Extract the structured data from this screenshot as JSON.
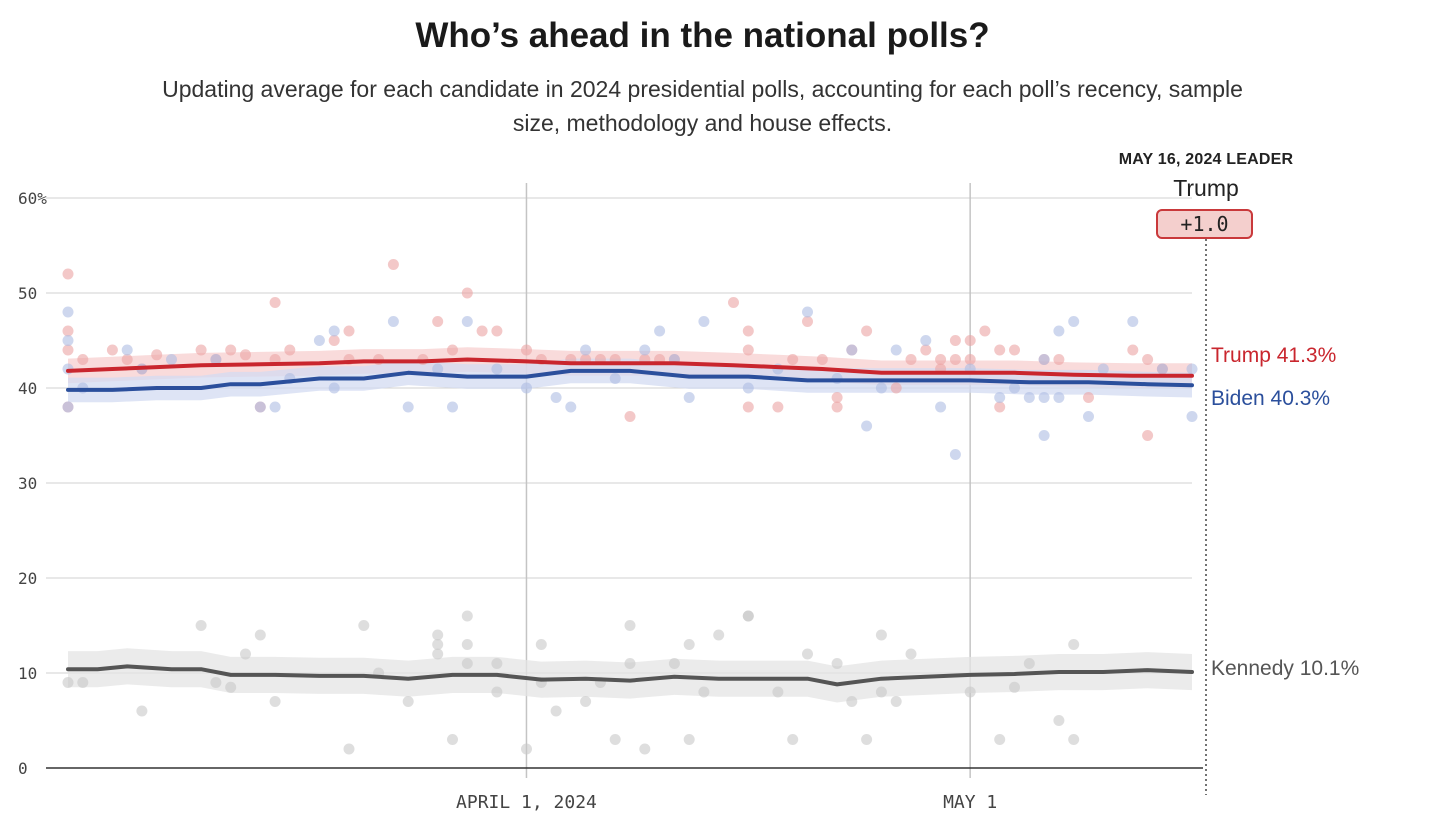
{
  "title": "Who’s ahead in the national polls?",
  "subtitle": "Updating average for each candidate in 2024 presidential polls, accounting for each poll’s recency, sample size, methodology and house effects.",
  "leader": {
    "heading": "MAY 16, 2024 LEADER",
    "name": "Trump",
    "margin": "+1.0"
  },
  "colors": {
    "trump": "#c9262e",
    "biden": "#2b4f9c",
    "kennedy": "#555555",
    "trump_poll": "#eba3a3",
    "biden_poll": "#aebde3",
    "kennedy_poll": "#c8c8c8",
    "grid": "#d0d0d0"
  },
  "chart_data": {
    "type": "line",
    "title": "Who’s ahead in the national polls?",
    "subtitle": "Updating average for each candidate in 2024 presidential polls, accounting for each poll’s recency, sample size, methodology and house effects.",
    "xlabel": "",
    "ylabel": "",
    "x_start": "2024-03-01",
    "x_end": "2024-05-16",
    "ylim": [
      0,
      60
    ],
    "y_ticks": [
      0,
      10,
      20,
      30,
      40,
      50,
      60
    ],
    "y_tick_labels": [
      "0",
      "10",
      "20",
      "30",
      "40",
      "50",
      "60%"
    ],
    "x_ticks": [
      {
        "date": "2024-04-01",
        "label": "APRIL 1, 2024"
      },
      {
        "date": "2024-05-01",
        "label": "MAY 1"
      }
    ],
    "grid": true,
    "series": [
      {
        "name": "Trump",
        "end_label": "Trump 41.3%",
        "color": "#c9262e",
        "average": [
          [
            "2024-03-01",
            41.8
          ],
          [
            "2024-03-04",
            42.0
          ],
          [
            "2024-03-07",
            42.2
          ],
          [
            "2024-03-10",
            42.4
          ],
          [
            "2024-03-14",
            42.5
          ],
          [
            "2024-03-18",
            42.6
          ],
          [
            "2024-03-21",
            42.8
          ],
          [
            "2024-03-25",
            42.8
          ],
          [
            "2024-03-28",
            43.0
          ],
          [
            "2024-04-01",
            42.8
          ],
          [
            "2024-04-04",
            42.6
          ],
          [
            "2024-04-08",
            42.6
          ],
          [
            "2024-04-11",
            42.6
          ],
          [
            "2024-04-15",
            42.4
          ],
          [
            "2024-04-18",
            42.2
          ],
          [
            "2024-04-21",
            42.0
          ],
          [
            "2024-04-25",
            41.6
          ],
          [
            "2024-04-28",
            41.6
          ],
          [
            "2024-05-01",
            41.6
          ],
          [
            "2024-05-04",
            41.6
          ],
          [
            "2024-05-08",
            41.4
          ],
          [
            "2024-05-12",
            41.3
          ],
          [
            "2024-05-16",
            41.3
          ]
        ],
        "polls": [
          [
            "2024-03-01",
            52
          ],
          [
            "2024-03-01",
            46
          ],
          [
            "2024-03-01",
            44
          ],
          [
            "2024-03-01",
            38
          ],
          [
            "2024-03-02",
            43
          ],
          [
            "2024-03-04",
            44
          ],
          [
            "2024-03-05",
            43
          ],
          [
            "2024-03-06",
            42
          ],
          [
            "2024-03-07",
            43.5
          ],
          [
            "2024-03-10",
            44
          ],
          [
            "2024-03-11",
            43
          ],
          [
            "2024-03-12",
            44
          ],
          [
            "2024-03-13",
            43.5
          ],
          [
            "2024-03-14",
            38
          ],
          [
            "2024-03-15",
            49
          ],
          [
            "2024-03-15",
            43
          ],
          [
            "2024-03-16",
            44
          ],
          [
            "2024-03-19",
            45
          ],
          [
            "2024-03-20",
            46
          ],
          [
            "2024-03-20",
            43
          ],
          [
            "2024-03-22",
            43
          ],
          [
            "2024-03-23",
            53
          ],
          [
            "2024-03-25",
            43
          ],
          [
            "2024-03-26",
            47
          ],
          [
            "2024-03-27",
            44
          ],
          [
            "2024-03-28",
            50
          ],
          [
            "2024-03-29",
            46
          ],
          [
            "2024-03-30",
            46
          ],
          [
            "2024-04-01",
            44
          ],
          [
            "2024-04-02",
            43
          ],
          [
            "2024-04-04",
            43
          ],
          [
            "2024-04-05",
            43
          ],
          [
            "2024-04-06",
            43
          ],
          [
            "2024-04-07",
            43
          ],
          [
            "2024-04-08",
            37
          ],
          [
            "2024-04-09",
            43
          ],
          [
            "2024-04-10",
            43
          ],
          [
            "2024-04-11",
            43
          ],
          [
            "2024-04-15",
            49
          ],
          [
            "2024-04-16",
            44
          ],
          [
            "2024-04-16",
            46
          ],
          [
            "2024-04-16",
            38
          ],
          [
            "2024-04-18",
            38
          ],
          [
            "2024-04-19",
            43
          ],
          [
            "2024-04-20",
            47
          ],
          [
            "2024-04-21",
            43
          ],
          [
            "2024-04-22",
            38
          ],
          [
            "2024-04-22",
            39
          ],
          [
            "2024-04-23",
            44
          ],
          [
            "2024-04-24",
            46
          ],
          [
            "2024-04-26",
            40
          ],
          [
            "2024-04-27",
            43
          ],
          [
            "2024-04-28",
            44
          ],
          [
            "2024-04-29",
            43
          ],
          [
            "2024-04-29",
            42
          ],
          [
            "2024-04-30",
            45
          ],
          [
            "2024-04-30",
            43
          ],
          [
            "2024-05-01",
            43
          ],
          [
            "2024-05-01",
            45
          ],
          [
            "2024-05-02",
            46
          ],
          [
            "2024-05-03",
            44
          ],
          [
            "2024-05-03",
            38
          ],
          [
            "2024-05-04",
            44
          ],
          [
            "2024-05-06",
            43
          ],
          [
            "2024-05-07",
            43
          ],
          [
            "2024-05-09",
            39
          ],
          [
            "2024-05-12",
            44
          ],
          [
            "2024-05-13",
            35
          ],
          [
            "2024-05-13",
            43
          ],
          [
            "2024-05-14",
            42
          ]
        ]
      },
      {
        "name": "Biden",
        "end_label": "Biden 40.3%",
        "color": "#2b4f9c",
        "average": [
          [
            "2024-03-01",
            39.8
          ],
          [
            "2024-03-04",
            39.8
          ],
          [
            "2024-03-07",
            40.0
          ],
          [
            "2024-03-10",
            40.0
          ],
          [
            "2024-03-12",
            40.4
          ],
          [
            "2024-03-14",
            40.4
          ],
          [
            "2024-03-18",
            41.0
          ],
          [
            "2024-03-21",
            41.0
          ],
          [
            "2024-03-24",
            41.6
          ],
          [
            "2024-03-28",
            41.2
          ],
          [
            "2024-04-01",
            41.2
          ],
          [
            "2024-04-04",
            41.8
          ],
          [
            "2024-04-08",
            41.8
          ],
          [
            "2024-04-12",
            41.2
          ],
          [
            "2024-04-16",
            41.2
          ],
          [
            "2024-04-20",
            40.8
          ],
          [
            "2024-04-24",
            40.8
          ],
          [
            "2024-04-28",
            40.8
          ],
          [
            "2024-05-01",
            40.8
          ],
          [
            "2024-05-05",
            40.6
          ],
          [
            "2024-05-09",
            40.6
          ],
          [
            "2024-05-13",
            40.4
          ],
          [
            "2024-05-16",
            40.3
          ]
        ],
        "polls": [
          [
            "2024-03-01",
            48
          ],
          [
            "2024-03-01",
            45
          ],
          [
            "2024-03-01",
            42
          ],
          [
            "2024-03-01",
            38
          ],
          [
            "2024-03-02",
            40
          ],
          [
            "2024-03-05",
            44
          ],
          [
            "2024-03-06",
            42
          ],
          [
            "2024-03-08",
            43
          ],
          [
            "2024-03-11",
            43
          ],
          [
            "2024-03-14",
            38
          ],
          [
            "2024-03-15",
            38
          ],
          [
            "2024-03-16",
            41
          ],
          [
            "2024-03-18",
            45
          ],
          [
            "2024-03-19",
            46
          ],
          [
            "2024-03-19",
            40
          ],
          [
            "2024-03-23",
            47
          ],
          [
            "2024-03-24",
            38
          ],
          [
            "2024-03-26",
            42
          ],
          [
            "2024-03-27",
            38
          ],
          [
            "2024-03-28",
            47
          ],
          [
            "2024-03-30",
            42
          ],
          [
            "2024-04-01",
            40
          ],
          [
            "2024-04-03",
            39
          ],
          [
            "2024-04-04",
            38
          ],
          [
            "2024-04-05",
            44
          ],
          [
            "2024-04-07",
            41
          ],
          [
            "2024-04-09",
            44
          ],
          [
            "2024-04-10",
            46
          ],
          [
            "2024-04-11",
            43
          ],
          [
            "2024-04-12",
            39
          ],
          [
            "2024-04-13",
            47
          ],
          [
            "2024-04-16",
            40
          ],
          [
            "2024-04-18",
            42
          ],
          [
            "2024-04-20",
            48
          ],
          [
            "2024-04-22",
            41
          ],
          [
            "2024-04-23",
            44
          ],
          [
            "2024-04-24",
            36
          ],
          [
            "2024-04-25",
            40
          ],
          [
            "2024-04-26",
            44
          ],
          [
            "2024-04-28",
            45
          ],
          [
            "2024-04-29",
            38
          ],
          [
            "2024-04-30",
            33
          ],
          [
            "2024-05-01",
            42
          ],
          [
            "2024-05-03",
            39
          ],
          [
            "2024-05-04",
            40
          ],
          [
            "2024-05-05",
            39
          ],
          [
            "2024-05-06",
            35
          ],
          [
            "2024-05-06",
            43
          ],
          [
            "2024-05-06",
            39
          ],
          [
            "2024-05-07",
            46
          ],
          [
            "2024-05-07",
            39
          ],
          [
            "2024-05-08",
            47
          ],
          [
            "2024-05-09",
            37
          ],
          [
            "2024-05-10",
            42
          ],
          [
            "2024-05-12",
            47
          ],
          [
            "2024-05-14",
            42
          ],
          [
            "2024-05-16",
            42
          ],
          [
            "2024-05-16",
            37
          ]
        ]
      },
      {
        "name": "Kennedy",
        "end_label": "Kennedy 10.1%",
        "color": "#555555",
        "average": [
          [
            "2024-03-01",
            10.4
          ],
          [
            "2024-03-03",
            10.4
          ],
          [
            "2024-03-05",
            10.7
          ],
          [
            "2024-03-08",
            10.4
          ],
          [
            "2024-03-10",
            10.4
          ],
          [
            "2024-03-12",
            9.8
          ],
          [
            "2024-03-15",
            9.8
          ],
          [
            "2024-03-18",
            9.7
          ],
          [
            "2024-03-21",
            9.7
          ],
          [
            "2024-03-24",
            9.4
          ],
          [
            "2024-03-27",
            9.8
          ],
          [
            "2024-03-30",
            9.8
          ],
          [
            "2024-04-02",
            9.3
          ],
          [
            "2024-04-05",
            9.4
          ],
          [
            "2024-04-08",
            9.2
          ],
          [
            "2024-04-11",
            9.6
          ],
          [
            "2024-04-14",
            9.4
          ],
          [
            "2024-04-17",
            9.4
          ],
          [
            "2024-04-20",
            9.4
          ],
          [
            "2024-04-22",
            8.8
          ],
          [
            "2024-04-25",
            9.4
          ],
          [
            "2024-04-28",
            9.6
          ],
          [
            "2024-05-01",
            9.8
          ],
          [
            "2024-05-04",
            9.9
          ],
          [
            "2024-05-07",
            10.1
          ],
          [
            "2024-05-10",
            10.1
          ],
          [
            "2024-05-13",
            10.3
          ],
          [
            "2024-05-16",
            10.1
          ]
        ],
        "polls": [
          [
            "2024-03-01",
            9
          ],
          [
            "2024-03-02",
            9
          ],
          [
            "2024-03-06",
            6
          ],
          [
            "2024-03-10",
            15
          ],
          [
            "2024-03-11",
            9
          ],
          [
            "2024-03-12",
            8.5
          ],
          [
            "2024-03-13",
            12
          ],
          [
            "2024-03-14",
            14
          ],
          [
            "2024-03-15",
            7
          ],
          [
            "2024-03-20",
            2
          ],
          [
            "2024-03-21",
            15
          ],
          [
            "2024-03-22",
            10
          ],
          [
            "2024-03-24",
            7
          ],
          [
            "2024-03-26",
            14
          ],
          [
            "2024-03-26",
            13
          ],
          [
            "2024-03-26",
            12
          ],
          [
            "2024-03-27",
            3
          ],
          [
            "2024-03-28",
            16
          ],
          [
            "2024-03-28",
            13
          ],
          [
            "2024-03-28",
            11
          ],
          [
            "2024-03-30",
            11
          ],
          [
            "2024-03-30",
            8
          ],
          [
            "2024-04-01",
            2
          ],
          [
            "2024-04-02",
            13
          ],
          [
            "2024-04-02",
            9
          ],
          [
            "2024-04-03",
            6
          ],
          [
            "2024-04-05",
            7
          ],
          [
            "2024-04-06",
            9
          ],
          [
            "2024-04-07",
            3
          ],
          [
            "2024-04-08",
            15
          ],
          [
            "2024-04-08",
            11
          ],
          [
            "2024-04-09",
            2
          ],
          [
            "2024-04-11",
            11
          ],
          [
            "2024-04-12",
            3
          ],
          [
            "2024-04-12",
            13
          ],
          [
            "2024-04-13",
            8
          ],
          [
            "2024-04-14",
            14
          ],
          [
            "2024-04-16",
            16
          ],
          [
            "2024-04-16",
            16
          ],
          [
            "2024-04-18",
            8
          ],
          [
            "2024-04-19",
            3
          ],
          [
            "2024-04-20",
            12
          ],
          [
            "2024-04-22",
            11
          ],
          [
            "2024-04-23",
            7
          ],
          [
            "2024-04-24",
            3
          ],
          [
            "2024-04-25",
            14
          ],
          [
            "2024-04-25",
            8
          ],
          [
            "2024-04-26",
            7
          ],
          [
            "2024-04-27",
            12
          ],
          [
            "2024-05-01",
            8
          ],
          [
            "2024-05-03",
            3
          ],
          [
            "2024-05-04",
            8.5
          ],
          [
            "2024-05-05",
            11
          ],
          [
            "2024-05-07",
            5
          ],
          [
            "2024-05-08",
            13
          ],
          [
            "2024-05-08",
            3
          ]
        ]
      }
    ]
  }
}
